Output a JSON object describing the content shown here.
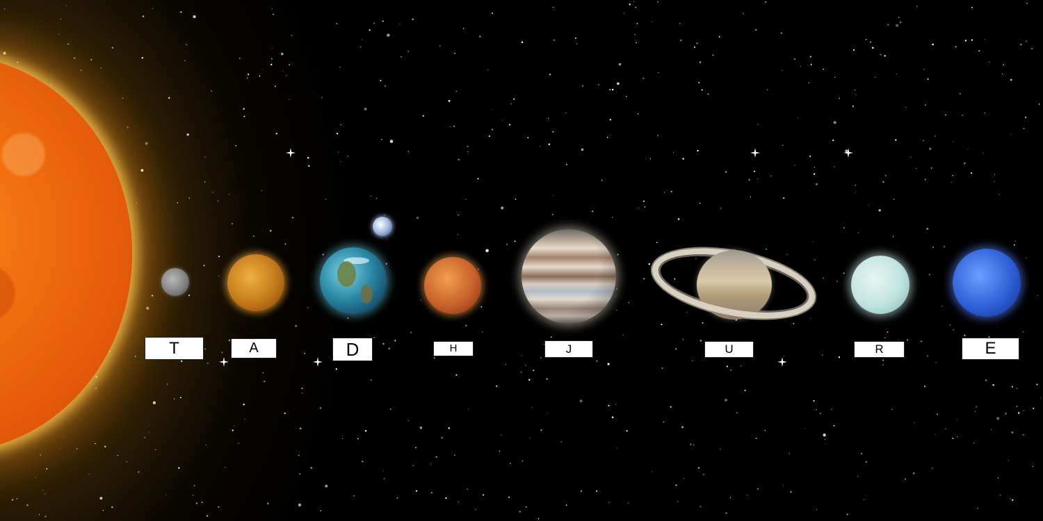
{
  "labels": [
    "T",
    "A",
    "D",
    "H",
    "J",
    "U",
    "R",
    "E"
  ],
  "bodies": {
    "sun": "sun",
    "planets": [
      "mercury",
      "venus",
      "earth",
      "mars",
      "jupiter",
      "saturn",
      "uranus",
      "neptune"
    ],
    "moon": "moon"
  },
  "colors": {
    "background": "#000000",
    "sun": "#f06a0c",
    "label_bg": "#ffffff",
    "label_text": "#000000"
  }
}
